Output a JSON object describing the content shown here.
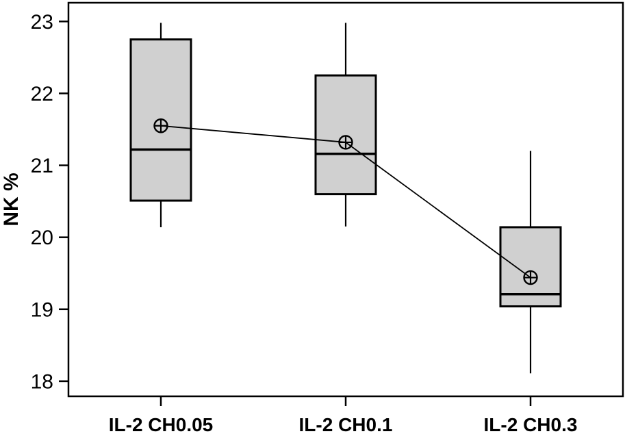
{
  "chart_data": {
    "type": "box",
    "title": "",
    "xlabel": "",
    "ylabel": "NK %",
    "categories": [
      "IL-2 CH0.05",
      "IL-2 CH0.1",
      "IL-2 CH0.3"
    ],
    "yticks": [
      18,
      19,
      20,
      21,
      22,
      23
    ],
    "ylim": [
      17.79,
      23.26
    ],
    "grid": false,
    "legend": "none",
    "series": [
      {
        "category": "IL-2 CH0.05",
        "whisker_low": 20.14,
        "q1": 20.51,
        "median": 21.22,
        "mean": 21.55,
        "q3": 22.75,
        "whisker_high": 22.98
      },
      {
        "category": "IL-2 CH0.1",
        "whisker_low": 20.15,
        "q1": 20.6,
        "median": 21.16,
        "mean": 21.32,
        "q3": 22.25,
        "whisker_high": 22.98
      },
      {
        "category": "IL-2 CH0.3",
        "whisker_low": 18.11,
        "q1": 19.04,
        "median": 19.21,
        "mean": 19.44,
        "q3": 20.14,
        "whisker_high": 21.2
      }
    ],
    "mean_marker": "circled-plus",
    "mean_line_connects_groups": true,
    "colors": {
      "box_fill": "#d0d0d0",
      "stroke": "#000000",
      "background": "#ffffff"
    }
  }
}
